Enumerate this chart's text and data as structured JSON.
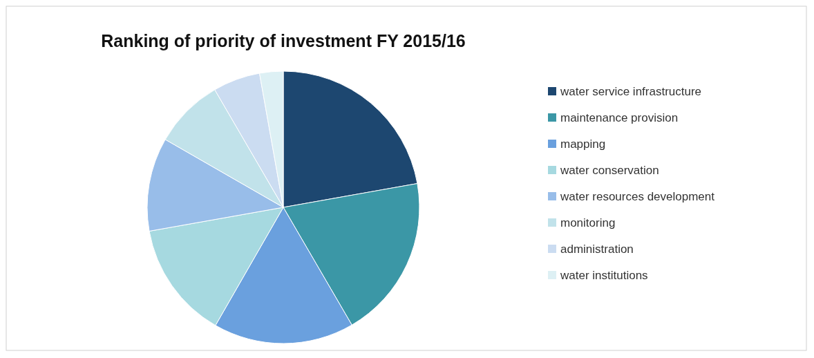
{
  "chart_data": {
    "type": "pie",
    "title": "Ranking of priority of investment FY 2015/16",
    "categories": [
      "water service infrastructure",
      "maintenance provision",
      "mapping",
      "water conservation",
      "water resources development",
      "monitoring",
      "administration",
      "water institutions"
    ],
    "values": [
      22.2,
      19.4,
      16.7,
      13.9,
      11.1,
      8.3,
      5.6,
      2.8
    ],
    "colors": [
      "#1d4770",
      "#3b97a6",
      "#6aa0de",
      "#a6d9e0",
      "#98bde9",
      "#c1e2ea",
      "#cbdcf1",
      "#ddf0f4"
    ],
    "legend": "right"
  }
}
